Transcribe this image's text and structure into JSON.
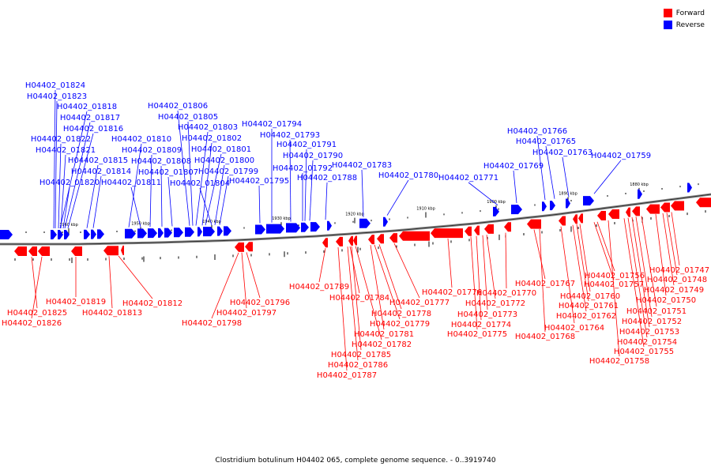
{
  "legend": {
    "forward": "Forward",
    "reverse": "Reverse",
    "forward_color": "#ff0000",
    "reverse_color": "#0000ff"
  },
  "caption": "Clostridium botulinum H04402 065, complete genome sequence. - 0..3919740",
  "tick_labels": [
    "1960 kbp",
    "1950 kbp",
    "1940 kbp",
    "1930 kbp",
    "1920 kbp",
    "1910 kbp",
    "1900 kbp",
    "1890 kbp",
    "1880 kbp"
  ],
  "reverse_labels": [
    "H04402_01824",
    "H04402_01823",
    "H04402_01818",
    "H04402_01817",
    "H04402_01816",
    "H04402_01822",
    "H04402_01821",
    "H04402_01815",
    "H04402_01814",
    "H04402_01820",
    "H04402_01806",
    "H04402_01805",
    "H04402_01803",
    "H04402_01802",
    "H04402_01801",
    "H04402_01800",
    "H04402_01799",
    "H04402_01804",
    "H04402_01810",
    "H04402_01809",
    "H04402_01808",
    "H04402_01807",
    "H04402_01811",
    "H04402_01794",
    "H04402_01793",
    "H04402_01791",
    "H04402_01790",
    "H04402_01792",
    "H04402_01788",
    "H04402_01795",
    "H04402_01783",
    "H04402_01780",
    "H04402_01771",
    "H04402_01769",
    "H04402_01766",
    "H04402_01765",
    "H04402_01763",
    "H04402_01759"
  ],
  "forward_labels": [
    "H04402_01819",
    "H04402_01825",
    "H04402_01826",
    "H04402_01812",
    "H04402_01813",
    "H04402_01796",
    "H04402_01797",
    "H04402_01798",
    "H04402_01789",
    "H04402_01784",
    "H04402_01777",
    "H04402_01778",
    "H04402_01779",
    "H04402_01781",
    "H04402_01782",
    "H04402_01785",
    "H04402_01786",
    "H04402_01787",
    "H04402_01776",
    "H04402_01770",
    "H04402_01772",
    "H04402_01773",
    "H04402_01774",
    "H04402_01775",
    "H04402_01767",
    "H04402_01768",
    "H04402_01764",
    "H04402_01762",
    "H04402_01761",
    "H04402_01760",
    "H04402_01757",
    "H04402_01756",
    "H04402_01751",
    "H04402_01752",
    "H04402_01753",
    "H04402_01754",
    "H04402_01755",
    "H04402_01758",
    "H04402_01747",
    "H04402_01748",
    "H04402_01749",
    "H04402_01750"
  ]
}
